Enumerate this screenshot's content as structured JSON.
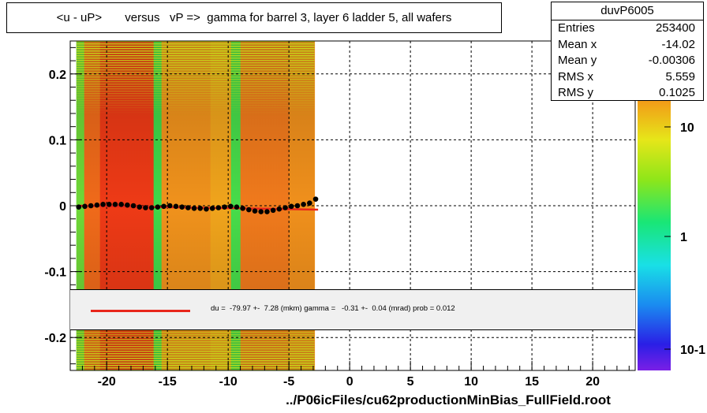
{
  "title": "<u - uP>       versus   vP =>  gamma for barrel 3, layer 6 ladder 5, all wafers",
  "footer": "../P06icFiles/cu62productionMinBias_FullField.root",
  "stats": {
    "name": "duvP6005",
    "rows": [
      {
        "key": "Entries",
        "value": "253400"
      },
      {
        "key": "Mean x",
        "value": "-14.02"
      },
      {
        "key": "Mean y",
        "value": "-0.00306"
      },
      {
        "key": "RMS x",
        "value": "5.559"
      },
      {
        "key": "RMS y",
        "value": "0.1025"
      }
    ]
  },
  "fit_text": "du =  -79.97 +-  7.28 (mkm) gamma =   -0.31 +-  0.04 (mrad) prob = 0.012",
  "colors": {
    "fit_line": "#e8261b",
    "profile_points": "#000000",
    "frame": "#000000"
  },
  "chart_data": {
    "type": "heatmap",
    "xlim": [
      -23,
      23.5
    ],
    "ylim": [
      -0.25,
      0.25
    ],
    "x_ticks": [
      "-20",
      "-15",
      "-10",
      "-5",
      "0",
      "5",
      "10",
      "15",
      "20"
    ],
    "y_ticks": [
      "0.2",
      "0.1",
      "0",
      "-0.1",
      "-0.2"
    ],
    "colorbar_ticks": [
      "10",
      "1",
      "10-1"
    ],
    "grid": true,
    "heatmap_x_range": [
      -22.5,
      -2.9
    ],
    "fit": {
      "x_range": [
        -22.3,
        -2.6
      ],
      "y_values": [
        0.0,
        -0.006
      ]
    },
    "profile": {
      "x": [
        -22.3,
        -21.8,
        -21.3,
        -20.8,
        -20.3,
        -19.8,
        -19.3,
        -18.8,
        -18.3,
        -17.8,
        -17.3,
        -16.8,
        -16.3,
        -15.8,
        -15.3,
        -14.8,
        -14.3,
        -13.8,
        -13.3,
        -12.8,
        -12.3,
        -11.8,
        -11.3,
        -10.8,
        -10.3,
        -9.8,
        -9.3,
        -8.8,
        -8.3,
        -7.8,
        -7.3,
        -6.8,
        -6.3,
        -5.8,
        -5.3,
        -4.8,
        -4.3,
        -3.8,
        -3.3,
        -2.8
      ],
      "y": [
        -0.002,
        -0.001,
        0.0,
        0.001,
        0.002,
        0.002,
        0.002,
        0.002,
        0.001,
        0.0,
        -0.002,
        -0.003,
        -0.003,
        -0.002,
        -0.001,
        0.0,
        -0.001,
        -0.002,
        -0.003,
        -0.004,
        -0.004,
        -0.005,
        -0.004,
        -0.003,
        -0.002,
        -0.001,
        -0.002,
        -0.004,
        -0.006,
        -0.008,
        -0.009,
        -0.009,
        -0.007,
        -0.005,
        -0.003,
        -0.001,
        0.0,
        0.002,
        0.004,
        0.01
      ]
    }
  }
}
